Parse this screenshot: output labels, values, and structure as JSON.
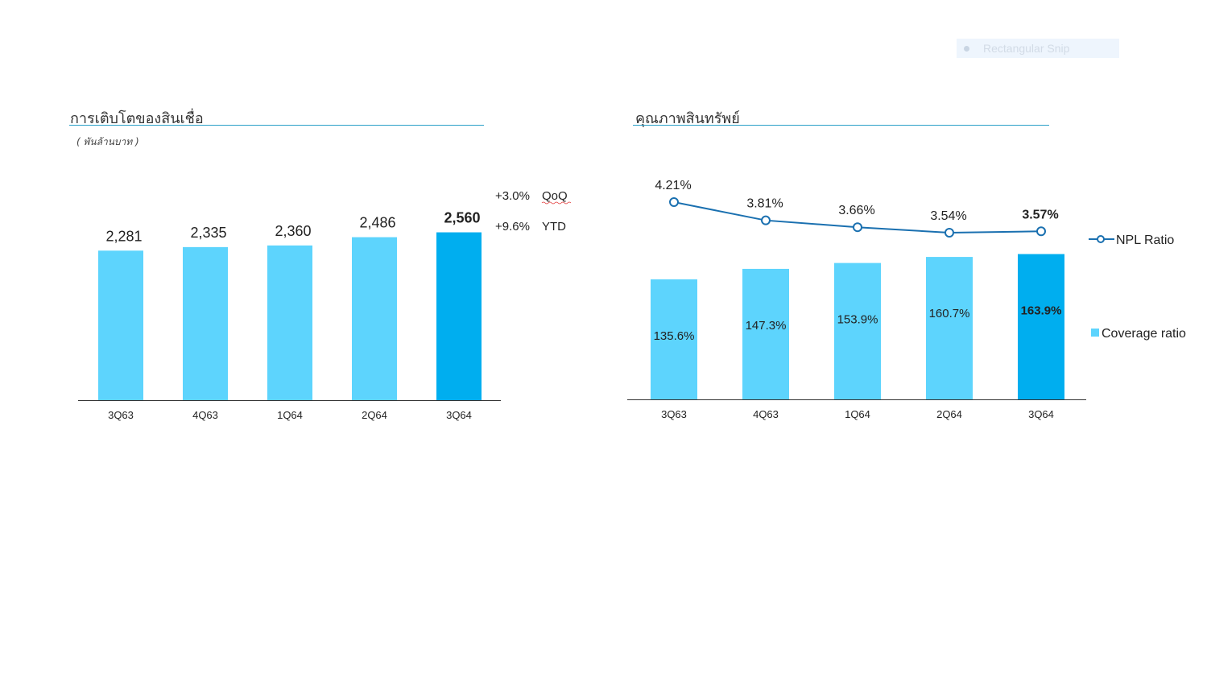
{
  "snip_tool": {
    "label": "Rectangular Snip"
  },
  "colors": {
    "bar": "#5dd4fd",
    "bar_highlight": "#00aeef",
    "line": "#1a70b0",
    "rule": "#2aa0c8"
  },
  "chart_data": [
    {
      "type": "bar",
      "title": "การเติบโตของสินเชื่อ",
      "unit_note": "( พันล้านบาท )",
      "categories": [
        "3Q63",
        "4Q63",
        "1Q64",
        "2Q64",
        "3Q64"
      ],
      "values": [
        2281,
        2335,
        2360,
        2486,
        2560
      ],
      "value_labels": [
        "2,281",
        "2,335",
        "2,360",
        "2,486",
        "2,560"
      ],
      "highlight_index": 4,
      "annotations": [
        {
          "value": "+3.0%",
          "label": "QoQ"
        },
        {
          "value": "+9.6%",
          "label": "YTD"
        }
      ],
      "ylim": [
        0,
        2800
      ]
    },
    {
      "type": "bar+line",
      "title": "คุณภาพสินทรัพย์",
      "categories": [
        "3Q63",
        "4Q63",
        "1Q64",
        "2Q64",
        "3Q64"
      ],
      "highlight_index": 4,
      "series": [
        {
          "name": "Coverage ratio",
          "type": "bar",
          "values": [
            135.6,
            147.3,
            153.9,
            160.7,
            163.9
          ],
          "labels": [
            "135.6%",
            "147.3%",
            "153.9%",
            "160.7%",
            "163.9%"
          ],
          "ylim": [
            0,
            196
          ]
        },
        {
          "name": "NPL Ratio",
          "type": "line",
          "values": [
            4.21,
            3.81,
            3.66,
            3.54,
            3.57
          ],
          "labels": [
            "4.21%",
            "3.81%",
            "3.66%",
            "3.54%",
            "3.57%"
          ]
        }
      ],
      "legend": "right"
    }
  ]
}
